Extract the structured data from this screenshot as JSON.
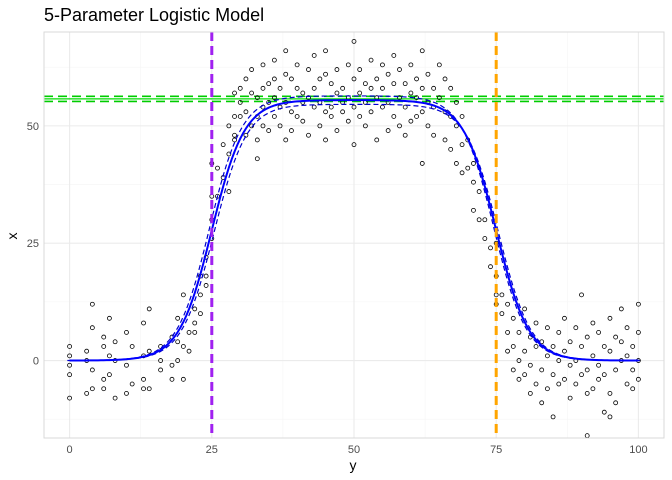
{
  "chart_data": {
    "type": "scatter",
    "title": "5-Parameter Logistic Model",
    "xlabel": "y",
    "ylabel": "x",
    "xlim": [
      -4.5,
      104.5
    ],
    "ylim": [
      -16.5,
      70.0
    ],
    "x_ticks": [
      0,
      25,
      50,
      75,
      100
    ],
    "y_ticks": [
      0,
      25,
      50
    ],
    "grid": true,
    "legend": "none",
    "points": [
      [
        0,
        -8
      ],
      [
        0,
        -3
      ],
      [
        0,
        -1
      ],
      [
        0,
        1
      ],
      [
        0,
        3
      ],
      [
        3,
        0
      ],
      [
        3,
        2
      ],
      [
        3,
        -7
      ],
      [
        4,
        12
      ],
      [
        4,
        7
      ],
      [
        4,
        -2
      ],
      [
        4,
        -6
      ],
      [
        6,
        5
      ],
      [
        6,
        3
      ],
      [
        6,
        -4
      ],
      [
        6,
        -6
      ],
      [
        7,
        9
      ],
      [
        7,
        1
      ],
      [
        7,
        -3
      ],
      [
        8,
        4
      ],
      [
        8,
        0
      ],
      [
        8,
        -8
      ],
      [
        10,
        6
      ],
      [
        10,
        -1
      ],
      [
        10,
        -7
      ],
      [
        11,
        3
      ],
      [
        11,
        -5
      ],
      [
        13,
        8
      ],
      [
        13,
        1
      ],
      [
        13,
        -4
      ],
      [
        13,
        -6
      ],
      [
        14,
        11
      ],
      [
        14,
        2
      ],
      [
        14,
        -6
      ],
      [
        16,
        3
      ],
      [
        16,
        0
      ],
      [
        16,
        -2
      ],
      [
        18,
        5
      ],
      [
        18,
        -1
      ],
      [
        18,
        -4
      ],
      [
        19,
        9
      ],
      [
        19,
        4
      ],
      [
        19,
        0
      ],
      [
        20,
        14
      ],
      [
        20,
        3
      ],
      [
        20,
        -4
      ],
      [
        21,
        6
      ],
      [
        21,
        2
      ],
      [
        22,
        11
      ],
      [
        22,
        8
      ],
      [
        22,
        6
      ],
      [
        23,
        18
      ],
      [
        23,
        14
      ],
      [
        23,
        10
      ],
      [
        24,
        22
      ],
      [
        24,
        18
      ],
      [
        24,
        16
      ],
      [
        25,
        26
      ],
      [
        25,
        30
      ],
      [
        25,
        35
      ],
      [
        25,
        42
      ],
      [
        26,
        35
      ],
      [
        26,
        41
      ],
      [
        27,
        46
      ],
      [
        27,
        39
      ],
      [
        28,
        50
      ],
      [
        28,
        44
      ],
      [
        28,
        36
      ],
      [
        29,
        48
      ],
      [
        29,
        52
      ],
      [
        29,
        57
      ],
      [
        29,
        47
      ],
      [
        30,
        55
      ],
      [
        30,
        52
      ],
      [
        30,
        58
      ],
      [
        31,
        60
      ],
      [
        31,
        53
      ],
      [
        31,
        48
      ],
      [
        32,
        57
      ],
      [
        32,
        50
      ],
      [
        32,
        62
      ],
      [
        33,
        56
      ],
      [
        33,
        52
      ],
      [
        33,
        47
      ],
      [
        33,
        43
      ],
      [
        34,
        63
      ],
      [
        34,
        58
      ],
      [
        34,
        54
      ],
      [
        34,
        50
      ],
      [
        35,
        59
      ],
      [
        35,
        55
      ],
      [
        35,
        49
      ],
      [
        36,
        64
      ],
      [
        36,
        60
      ],
      [
        36,
        56
      ],
      [
        36,
        52
      ],
      [
        37,
        58
      ],
      [
        37,
        54
      ],
      [
        37,
        50
      ],
      [
        38,
        66
      ],
      [
        38,
        61
      ],
      [
        38,
        55
      ],
      [
        38,
        47
      ],
      [
        39,
        60
      ],
      [
        39,
        53
      ],
      [
        39,
        49
      ],
      [
        40,
        63
      ],
      [
        40,
        58
      ],
      [
        40,
        52
      ],
      [
        41,
        57
      ],
      [
        41,
        55
      ],
      [
        41,
        51
      ],
      [
        42,
        62
      ],
      [
        42,
        56
      ],
      [
        42,
        48
      ],
      [
        43,
        65
      ],
      [
        43,
        58
      ],
      [
        43,
        54
      ],
      [
        44,
        60
      ],
      [
        44,
        55
      ],
      [
        44,
        50
      ],
      [
        45,
        66
      ],
      [
        45,
        61
      ],
      [
        45,
        53
      ],
      [
        45,
        47
      ],
      [
        46,
        59
      ],
      [
        46,
        54
      ],
      [
        46,
        52
      ],
      [
        47,
        62
      ],
      [
        47,
        57
      ],
      [
        47,
        49
      ],
      [
        48,
        58
      ],
      [
        48,
        55
      ],
      [
        48,
        53
      ],
      [
        49,
        63
      ],
      [
        49,
        56
      ],
      [
        49,
        51
      ],
      [
        50,
        68
      ],
      [
        50,
        60
      ],
      [
        50,
        54
      ],
      [
        50,
        46
      ],
      [
        51,
        62
      ],
      [
        51,
        57
      ],
      [
        51,
        52
      ],
      [
        52,
        59
      ],
      [
        52,
        55
      ],
      [
        52,
        50
      ],
      [
        53,
        64
      ],
      [
        53,
        58
      ],
      [
        53,
        53
      ],
      [
        54,
        60
      ],
      [
        54,
        56
      ],
      [
        54,
        47
      ],
      [
        55,
        63
      ],
      [
        55,
        58
      ],
      [
        55,
        54
      ],
      [
        56,
        61
      ],
      [
        56,
        55
      ],
      [
        56,
        49
      ],
      [
        57,
        65
      ],
      [
        57,
        59
      ],
      [
        57,
        52
      ],
      [
        58,
        62
      ],
      [
        58,
        56
      ],
      [
        58,
        50
      ],
      [
        59,
        59
      ],
      [
        59,
        54
      ],
      [
        59,
        48
      ],
      [
        60,
        63
      ],
      [
        60,
        57
      ],
      [
        60,
        51
      ],
      [
        61,
        60
      ],
      [
        61,
        56
      ],
      [
        61,
        52
      ],
      [
        62,
        66
      ],
      [
        62,
        58
      ],
      [
        62,
        53
      ],
      [
        62,
        42
      ],
      [
        63,
        61
      ],
      [
        63,
        55
      ],
      [
        63,
        50
      ],
      [
        64,
        58
      ],
      [
        64,
        54
      ],
      [
        64,
        48
      ],
      [
        65,
        63
      ],
      [
        65,
        56
      ],
      [
        66,
        60
      ],
      [
        66,
        53
      ],
      [
        66,
        47
      ],
      [
        67,
        58
      ],
      [
        67,
        52
      ],
      [
        67,
        45
      ],
      [
        68,
        55
      ],
      [
        68,
        50
      ],
      [
        68,
        42
      ],
      [
        69,
        52
      ],
      [
        69,
        46
      ],
      [
        69,
        40
      ],
      [
        70,
        47
      ],
      [
        70,
        41
      ],
      [
        71,
        42
      ],
      [
        71,
        38
      ],
      [
        71,
        32
      ],
      [
        72,
        36
      ],
      [
        72,
        30
      ],
      [
        73,
        30
      ],
      [
        73,
        26
      ],
      [
        74,
        24
      ],
      [
        74,
        20
      ],
      [
        75,
        25
      ],
      [
        75,
        18
      ],
      [
        75,
        14
      ],
      [
        75,
        12
      ],
      [
        76,
        14
      ],
      [
        76,
        10
      ],
      [
        77,
        12
      ],
      [
        77,
        6
      ],
      [
        77,
        2
      ],
      [
        78,
        9
      ],
      [
        78,
        3
      ],
      [
        78,
        -2
      ],
      [
        79,
        6
      ],
      [
        79,
        0
      ],
      [
        79,
        -4
      ],
      [
        80,
        11
      ],
      [
        80,
        2
      ],
      [
        80,
        -3
      ],
      [
        81,
        5
      ],
      [
        81,
        -1
      ],
      [
        81,
        -7
      ],
      [
        82,
        8
      ],
      [
        82,
        3
      ],
      [
        82,
        -5
      ],
      [
        83,
        4
      ],
      [
        83,
        -2
      ],
      [
        83,
        -9
      ],
      [
        84,
        7
      ],
      [
        84,
        1
      ],
      [
        84,
        -6
      ],
      [
        85,
        3
      ],
      [
        85,
        -3
      ],
      [
        85,
        -12
      ],
      [
        86,
        6
      ],
      [
        86,
        0
      ],
      [
        86,
        -5
      ],
      [
        87,
        9
      ],
      [
        87,
        2
      ],
      [
        87,
        -4
      ],
      [
        88,
        4
      ],
      [
        88,
        -1
      ],
      [
        88,
        -8
      ],
      [
        89,
        7
      ],
      [
        89,
        0
      ],
      [
        89,
        -5
      ],
      [
        90,
        14
      ],
      [
        90,
        3
      ],
      [
        90,
        -3
      ],
      [
        91,
        5
      ],
      [
        91,
        -2
      ],
      [
        91,
        -7
      ],
      [
        92,
        8
      ],
      [
        92,
        1
      ],
      [
        92,
        -6
      ],
      [
        93,
        6
      ],
      [
        93,
        -1
      ],
      [
        93,
        -4
      ],
      [
        94,
        3
      ],
      [
        94,
        -3
      ],
      [
        95,
        9
      ],
      [
        95,
        2
      ],
      [
        95,
        -7
      ],
      [
        96,
        5
      ],
      [
        96,
        -2
      ],
      [
        96,
        -9
      ],
      [
        97,
        11
      ],
      [
        97,
        4
      ],
      [
        97,
        0
      ],
      [
        98,
        7
      ],
      [
        98,
        1
      ],
      [
        98,
        -5
      ],
      [
        99,
        3
      ],
      [
        99,
        -2
      ],
      [
        99,
        -6
      ],
      [
        100,
        12
      ],
      [
        100,
        6
      ],
      [
        100,
        0
      ],
      [
        100,
        -4
      ]
    ],
    "extra_points": [
      [
        91,
        -16
      ],
      [
        94,
        -11
      ],
      [
        95,
        -12
      ]
    ],
    "fit": {
      "type": "5PL",
      "bottom": 0,
      "top": 55.5,
      "ec50_rise": 25,
      "ec50_fall": 75,
      "slope": 0.35,
      "color": "#0000ff",
      "band_color": "#0000cc"
    },
    "reference_lines": {
      "vertical": [
        {
          "x": 25,
          "color": "#a020f0",
          "style": "dashed"
        },
        {
          "x": 75,
          "color": "#ffa500",
          "style": "dashed"
        }
      ],
      "horizontal": [
        {
          "y": 56.3,
          "color": "#00cc00",
          "style": "dashed"
        },
        {
          "y": 55.2,
          "color": "#00cc00",
          "style": "dashed"
        },
        {
          "y": 55.75,
          "color": "#00dd00",
          "style": "solid"
        }
      ]
    },
    "colors": {
      "grid_major": "#ebebeb",
      "grid_minor": "#f5f5f5",
      "panel_border": "#d9d9d9",
      "point_stroke": "#000000"
    }
  }
}
